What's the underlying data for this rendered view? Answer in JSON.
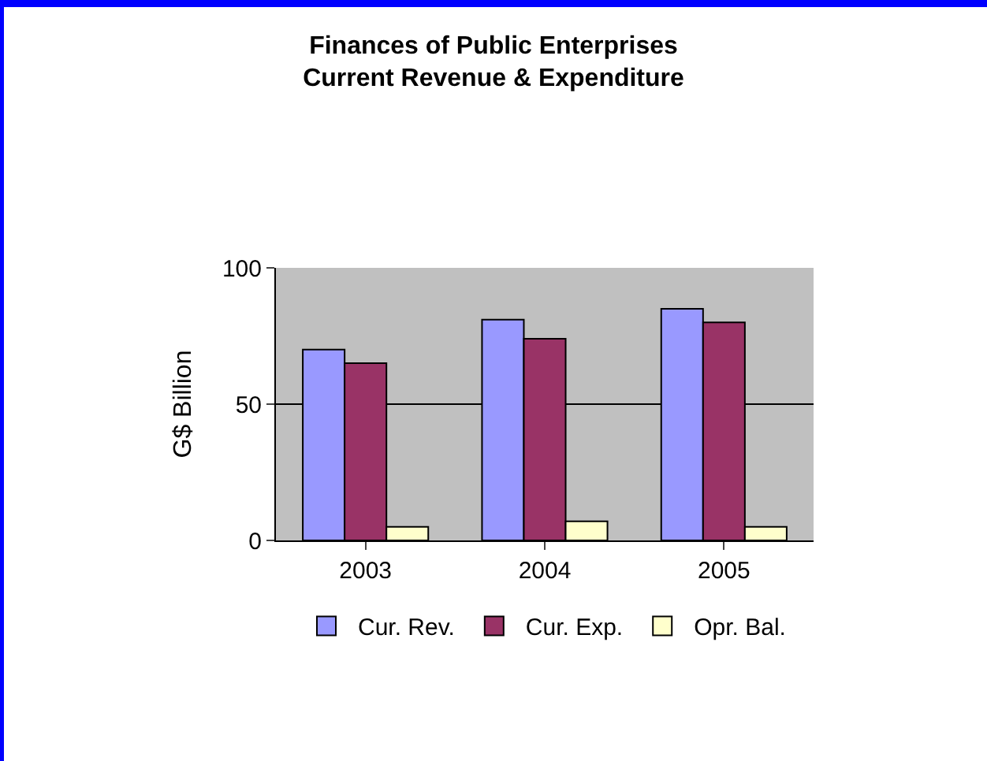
{
  "chart_data": {
    "type": "bar",
    "title": "Finances of Public Enterprises\nCurrent Revenue & Expenditure",
    "ylabel": "G$ Billion",
    "categories": [
      "2003",
      "2004",
      "2005"
    ],
    "series": [
      {
        "name": "Cur. Rev.",
        "color": "#9999ff",
        "values": [
          70,
          81,
          85
        ]
      },
      {
        "name": "Cur. Exp.",
        "color": "#993366",
        "values": [
          65,
          74,
          80
        ]
      },
      {
        "name": "Opr. Bal.",
        "color": "#ffffcc",
        "values": [
          5,
          7,
          5
        ]
      }
    ],
    "ylim": [
      0,
      100
    ],
    "yticks": [
      0,
      50,
      100
    ],
    "grid": "y",
    "legend": "bottom"
  }
}
